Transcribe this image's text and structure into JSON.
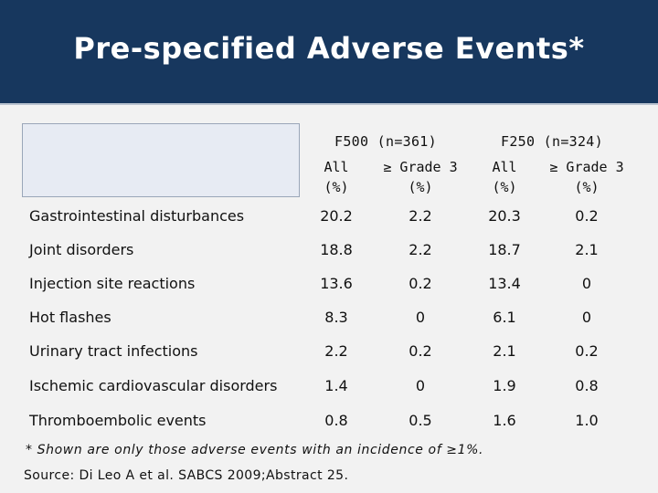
{
  "title": "Pre-specified Adverse Events*",
  "groups": [
    {
      "name": "F500 (n=361)"
    },
    {
      "name": "F250 (n=324)"
    }
  ],
  "subheaders": [
    {
      "line1": "All",
      "line2": "(%)"
    },
    {
      "line1": "≥ Grade 3",
      "line2": "(%)"
    },
    {
      "line1": "All",
      "line2": "(%)"
    },
    {
      "line1": "≥ Grade 3",
      "line2": "(%)"
    }
  ],
  "rows": [
    {
      "label": "Gastrointestinal disturbances",
      "v": [
        "20.2",
        "2.2",
        "20.3",
        "0.2"
      ]
    },
    {
      "label": "Joint disorders",
      "v": [
        "18.8",
        "2.2",
        "18.7",
        "2.1"
      ]
    },
    {
      "label": "Injection site reactions",
      "v": [
        "13.6",
        "0.2",
        "13.4",
        "0"
      ]
    },
    {
      "label": "Hot flashes",
      "v": [
        "8.3",
        "0",
        "6.1",
        "0"
      ]
    },
    {
      "label": "Urinary tract infections",
      "v": [
        "2.2",
        "0.2",
        "2.1",
        "0.2"
      ]
    },
    {
      "label": "Ischemic cardiovascular disorders",
      "v": [
        "1.4",
        "0",
        "1.9",
        "0.8"
      ]
    },
    {
      "label": "Thromboembolic events",
      "v": [
        "0.8",
        "0.5",
        "1.6",
        "1.0"
      ]
    }
  ],
  "footnote": "* Shown are only those adverse events with an incidence of ≥1%.",
  "source": "Source: Di Leo A et al. SABCS 2009;Abstract 25."
}
